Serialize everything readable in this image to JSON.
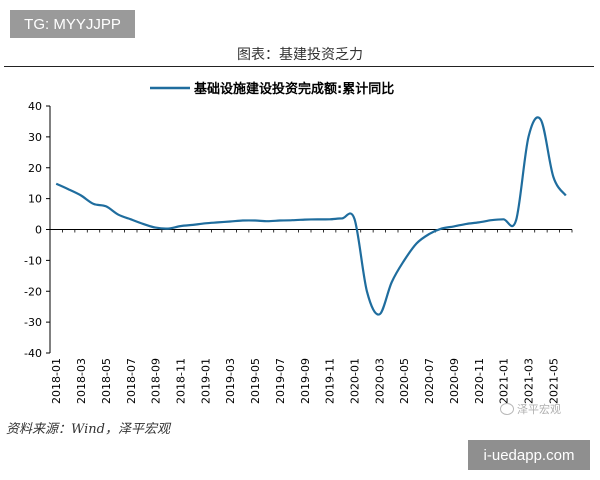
{
  "badge_top": "TG: MYYJJPP",
  "figure_title": "图表：基建投资乏力",
  "source": "资料来源：Wind，泽平宏观",
  "watermark_text": "泽平宏观",
  "badge_bottom": "i-uedapp.com",
  "chart_data": {
    "type": "line",
    "title": "",
    "xlabel": "",
    "ylabel": "",
    "ylim": [
      -40,
      40
    ],
    "yticks": [
      40,
      30,
      20,
      10,
      0,
      -10,
      -20,
      -30,
      -40
    ],
    "grid": false,
    "legend_position": "top-center",
    "xtick_labels": [
      "2018-01",
      "2018-03",
      "2018-05",
      "2018-07",
      "2018-09",
      "2018-11",
      "2019-01",
      "2019-03",
      "2019-05",
      "2019-07",
      "2019-09",
      "2019-11",
      "2020-01",
      "2020-03",
      "2020-05",
      "2020-07",
      "2020-09",
      "2020-11",
      "2021-01",
      "2021-03",
      "2021-05"
    ],
    "series": [
      {
        "name": "基础设施建设投资完成额:累计同比",
        "color": "#1f6d9e",
        "x": [
          "2018-01",
          "2018-02",
          "2018-03",
          "2018-04",
          "2018-05",
          "2018-06",
          "2018-07",
          "2018-08",
          "2018-09",
          "2018-10",
          "2018-11",
          "2018-12",
          "2019-01",
          "2019-02",
          "2019-03",
          "2019-04",
          "2019-05",
          "2019-06",
          "2019-07",
          "2019-08",
          "2019-09",
          "2019-10",
          "2019-11",
          "2019-12",
          "2020-01",
          "2020-02",
          "2020-03",
          "2020-04",
          "2020-05",
          "2020-06",
          "2020-07",
          "2020-08",
          "2020-09",
          "2020-10",
          "2020-11",
          "2020-12",
          "2021-01",
          "2021-02",
          "2021-03",
          "2021-04",
          "2021-05",
          "2021-06"
        ],
        "y": [
          14.8,
          13.0,
          11.0,
          8.3,
          7.5,
          4.8,
          3.3,
          1.8,
          0.6,
          0.3,
          1.1,
          1.5,
          2.0,
          2.3,
          2.6,
          2.9,
          2.9,
          2.7,
          2.9,
          3.0,
          3.2,
          3.3,
          3.3,
          3.6,
          3.4,
          -20.0,
          -27.5,
          -17.0,
          -10.0,
          -4.5,
          -1.5,
          0.3,
          1.0,
          1.8,
          2.3,
          3.0,
          3.3,
          3.0,
          30.0,
          35.5,
          17.0,
          11.0
        ]
      }
    ]
  }
}
